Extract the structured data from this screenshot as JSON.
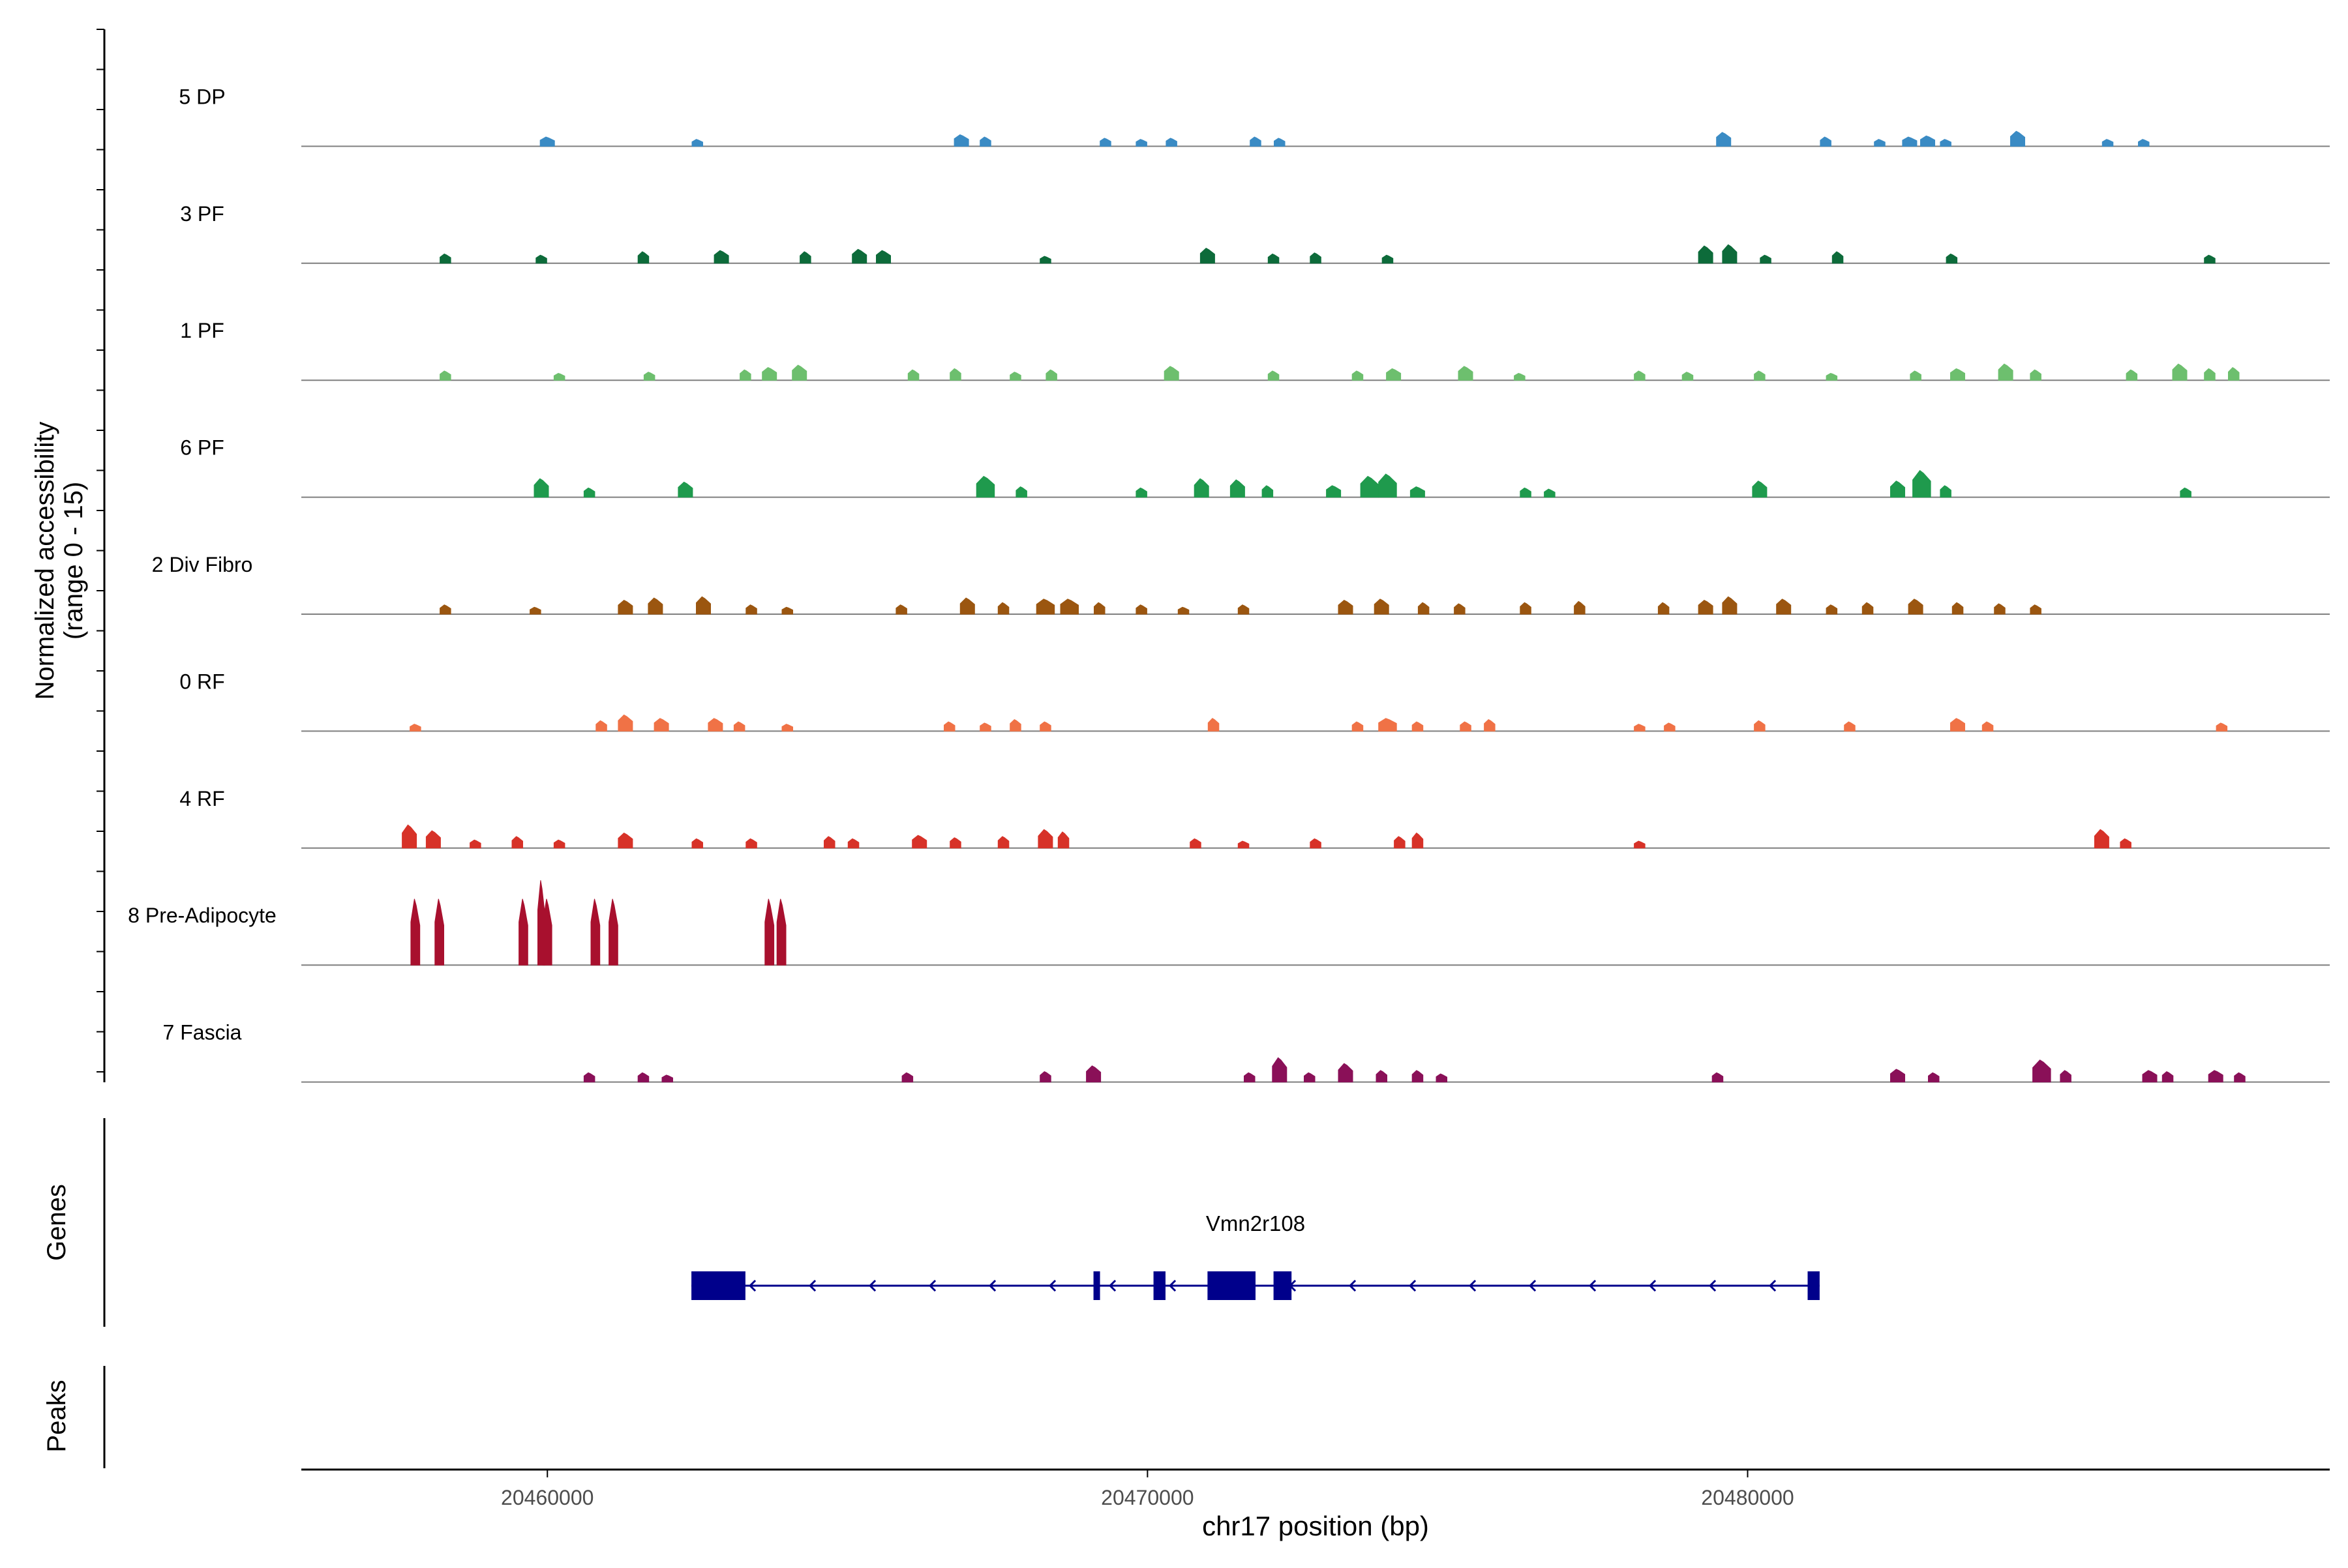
{
  "chart_data": {
    "type": "coverage-track",
    "y_axis_title": [
      "Normalized accessibility",
      "(range 0 - 15)"
    ],
    "ylim": [
      0,
      15
    ],
    "x_axis_title": "chr17 position (bp)",
    "xlim": [
      20455900,
      20489700
    ],
    "x_ticks": [
      {
        "value": 20460000,
        "label": "20460000"
      },
      {
        "value": 20470000,
        "label": "20470000"
      },
      {
        "value": 20480000,
        "label": "20480000"
      }
    ],
    "series": [
      {
        "name": "5 DP",
        "color": "#3A8BC4",
        "peaks": [
          [
            20460000,
            0.8,
            40
          ],
          [
            20462500,
            0.6,
            30
          ],
          [
            20466900,
            1.0,
            40
          ],
          [
            20467300,
            0.8,
            30
          ],
          [
            20469300,
            0.7,
            30
          ],
          [
            20469900,
            0.6,
            30
          ],
          [
            20470400,
            0.7,
            30
          ],
          [
            20471800,
            0.8,
            30
          ],
          [
            20472200,
            0.7,
            30
          ],
          [
            20479600,
            1.2,
            40
          ],
          [
            20481300,
            0.8,
            30
          ],
          [
            20482200,
            0.6,
            30
          ],
          [
            20482700,
            0.8,
            40
          ],
          [
            20483000,
            0.9,
            40
          ],
          [
            20483300,
            0.6,
            30
          ],
          [
            20484500,
            1.3,
            40
          ],
          [
            20486000,
            0.6,
            30
          ],
          [
            20486600,
            0.6,
            30
          ]
        ]
      },
      {
        "name": "3 PF",
        "color": "#0D6B3A",
        "peaks": [
          [
            20458300,
            0.8,
            30
          ],
          [
            20459900,
            0.7,
            30
          ],
          [
            20461600,
            1.0,
            30
          ],
          [
            20462900,
            1.1,
            40
          ],
          [
            20464300,
            1.0,
            30
          ],
          [
            20465200,
            1.2,
            40
          ],
          [
            20465600,
            1.1,
            40
          ],
          [
            20468300,
            0.6,
            30
          ],
          [
            20471000,
            1.3,
            40
          ],
          [
            20472100,
            0.8,
            30
          ],
          [
            20472800,
            0.9,
            30
          ],
          [
            20474000,
            0.7,
            30
          ],
          [
            20479300,
            1.5,
            40
          ],
          [
            20479700,
            1.6,
            40
          ],
          [
            20480300,
            0.7,
            30
          ],
          [
            20481500,
            1.0,
            30
          ],
          [
            20483400,
            0.8,
            30
          ],
          [
            20487700,
            0.7,
            30
          ]
        ]
      },
      {
        "name": "1 PF",
        "color": "#6DBF6E",
        "peaks": [
          [
            20458300,
            0.8,
            30
          ],
          [
            20460200,
            0.6,
            30
          ],
          [
            20461700,
            0.7,
            30
          ],
          [
            20463300,
            0.9,
            30
          ],
          [
            20463700,
            1.1,
            40
          ],
          [
            20464200,
            1.3,
            40
          ],
          [
            20466100,
            0.9,
            30
          ],
          [
            20466800,
            1.0,
            30
          ],
          [
            20467800,
            0.7,
            30
          ],
          [
            20468400,
            0.9,
            30
          ],
          [
            20470400,
            1.2,
            40
          ],
          [
            20472100,
            0.8,
            30
          ],
          [
            20473500,
            0.8,
            30
          ],
          [
            20474100,
            1.0,
            40
          ],
          [
            20475300,
            1.2,
            40
          ],
          [
            20476200,
            0.6,
            30
          ],
          [
            20478200,
            0.8,
            30
          ],
          [
            20479000,
            0.7,
            30
          ],
          [
            20480200,
            0.8,
            30
          ],
          [
            20481400,
            0.6,
            30
          ],
          [
            20482800,
            0.8,
            30
          ],
          [
            20483500,
            1.0,
            40
          ],
          [
            20484300,
            1.4,
            40
          ],
          [
            20484800,
            0.9,
            30
          ],
          [
            20486400,
            0.9,
            30
          ],
          [
            20487200,
            1.4,
            40
          ],
          [
            20487700,
            1.0,
            30
          ],
          [
            20488100,
            1.1,
            30
          ]
        ]
      },
      {
        "name": "6 PF",
        "color": "#1F9A4D",
        "peaks": [
          [
            20459900,
            1.6,
            40
          ],
          [
            20460700,
            0.8,
            30
          ],
          [
            20462300,
            1.3,
            40
          ],
          [
            20467300,
            1.8,
            50
          ],
          [
            20467900,
            0.9,
            30
          ],
          [
            20469900,
            0.8,
            30
          ],
          [
            20470900,
            1.6,
            40
          ],
          [
            20471500,
            1.5,
            40
          ],
          [
            20472000,
            1.0,
            30
          ],
          [
            20473100,
            1.0,
            40
          ],
          [
            20473700,
            1.8,
            50
          ],
          [
            20474000,
            2.0,
            50
          ],
          [
            20474500,
            0.9,
            40
          ],
          [
            20476300,
            0.8,
            30
          ],
          [
            20476700,
            0.7,
            30
          ],
          [
            20480200,
            1.4,
            40
          ],
          [
            20482500,
            1.4,
            40
          ],
          [
            20482900,
            2.3,
            50
          ],
          [
            20483300,
            1.0,
            30
          ],
          [
            20487300,
            0.8,
            30
          ]
        ]
      },
      {
        "name": "2 Div Fibro",
        "color": "#9B5610",
        "peaks": [
          [
            20458300,
            0.8,
            30
          ],
          [
            20459800,
            0.6,
            30
          ],
          [
            20461300,
            1.2,
            40
          ],
          [
            20461800,
            1.4,
            40
          ],
          [
            20462600,
            1.5,
            40
          ],
          [
            20463400,
            0.8,
            30
          ],
          [
            20464000,
            0.6,
            30
          ],
          [
            20465900,
            0.8,
            30
          ],
          [
            20467000,
            1.4,
            40
          ],
          [
            20467600,
            1.0,
            30
          ],
          [
            20468300,
            1.3,
            50
          ],
          [
            20468700,
            1.3,
            50
          ],
          [
            20469200,
            1.0,
            30
          ],
          [
            20469900,
            0.8,
            30
          ],
          [
            20470600,
            0.6,
            30
          ],
          [
            20471600,
            0.8,
            30
          ],
          [
            20473300,
            1.2,
            40
          ],
          [
            20473900,
            1.3,
            40
          ],
          [
            20474600,
            1.0,
            30
          ],
          [
            20475200,
            0.9,
            30
          ],
          [
            20476300,
            1.0,
            30
          ],
          [
            20477200,
            1.1,
            30
          ],
          [
            20478600,
            1.0,
            30
          ],
          [
            20479300,
            1.2,
            40
          ],
          [
            20479700,
            1.5,
            40
          ],
          [
            20480600,
            1.3,
            40
          ],
          [
            20481400,
            0.8,
            30
          ],
          [
            20482000,
            1.0,
            30
          ],
          [
            20482800,
            1.3,
            40
          ],
          [
            20483500,
            1.0,
            30
          ],
          [
            20484200,
            0.9,
            30
          ],
          [
            20484800,
            0.8,
            30
          ]
        ]
      },
      {
        "name": "0 RF",
        "color": "#F07246",
        "peaks": [
          [
            20457800,
            0.6,
            30
          ],
          [
            20460900,
            0.9,
            30
          ],
          [
            20461300,
            1.4,
            40
          ],
          [
            20461900,
            1.1,
            40
          ],
          [
            20462800,
            1.1,
            40
          ],
          [
            20463200,
            0.8,
            30
          ],
          [
            20464000,
            0.6,
            30
          ],
          [
            20466700,
            0.8,
            30
          ],
          [
            20467300,
            0.7,
            30
          ],
          [
            20467800,
            1.0,
            30
          ],
          [
            20468300,
            0.8,
            30
          ],
          [
            20471100,
            1.1,
            30
          ],
          [
            20473500,
            0.8,
            30
          ],
          [
            20474000,
            1.1,
            50
          ],
          [
            20474500,
            0.8,
            30
          ],
          [
            20475300,
            0.8,
            30
          ],
          [
            20475700,
            1.0,
            30
          ],
          [
            20478200,
            0.6,
            30
          ],
          [
            20478700,
            0.7,
            30
          ],
          [
            20480200,
            0.9,
            30
          ],
          [
            20481700,
            0.8,
            30
          ],
          [
            20483500,
            1.1,
            40
          ],
          [
            20484000,
            0.8,
            30
          ],
          [
            20487900,
            0.7,
            30
          ]
        ]
      },
      {
        "name": "4 RF",
        "color": "#D73228",
        "peaks": [
          [
            20457700,
            2.0,
            40
          ],
          [
            20458100,
            1.5,
            40
          ],
          [
            20458800,
            0.7,
            30
          ],
          [
            20459500,
            1.0,
            30
          ],
          [
            20460200,
            0.7,
            30
          ],
          [
            20461300,
            1.3,
            40
          ],
          [
            20462500,
            0.8,
            30
          ],
          [
            20463400,
            0.8,
            30
          ],
          [
            20464700,
            1.0,
            30
          ],
          [
            20465100,
            0.8,
            30
          ],
          [
            20466200,
            1.1,
            40
          ],
          [
            20466800,
            0.9,
            30
          ],
          [
            20467600,
            1.0,
            30
          ],
          [
            20468300,
            1.6,
            40
          ],
          [
            20468600,
            1.4,
            30
          ],
          [
            20470800,
            0.8,
            30
          ],
          [
            20471600,
            0.6,
            30
          ],
          [
            20472800,
            0.8,
            30
          ],
          [
            20474200,
            1.0,
            30
          ],
          [
            20474500,
            1.3,
            30
          ],
          [
            20478200,
            0.6,
            30
          ],
          [
            20485900,
            1.6,
            40
          ],
          [
            20486300,
            0.8,
            30
          ]
        ]
      },
      {
        "name": "8 Pre-Adipocyte",
        "color": "#A8102E",
        "peaks": [
          [
            20457800,
            5.7,
            25
          ],
          [
            20458200,
            5.7,
            25
          ],
          [
            20459600,
            5.7,
            25
          ],
          [
            20459900,
            7.3,
            20
          ],
          [
            20460000,
            5.7,
            25
          ],
          [
            20460800,
            5.7,
            25
          ],
          [
            20461100,
            5.7,
            25
          ],
          [
            20463700,
            5.7,
            25
          ],
          [
            20463900,
            5.7,
            25
          ]
        ]
      },
      {
        "name": "7 Fascia",
        "color": "#8A1058",
        "peaks": [
          [
            20460700,
            0.8,
            30
          ],
          [
            20461600,
            0.8,
            30
          ],
          [
            20462000,
            0.6,
            30
          ],
          [
            20466000,
            0.8,
            30
          ],
          [
            20468300,
            0.9,
            30
          ],
          [
            20469100,
            1.4,
            40
          ],
          [
            20471700,
            0.8,
            30
          ],
          [
            20472200,
            2.1,
            40
          ],
          [
            20472700,
            0.8,
            30
          ],
          [
            20473300,
            1.6,
            40
          ],
          [
            20473900,
            1.0,
            30
          ],
          [
            20474500,
            1.0,
            30
          ],
          [
            20474900,
            0.7,
            30
          ],
          [
            20479500,
            0.8,
            30
          ],
          [
            20482500,
            1.1,
            40
          ],
          [
            20483100,
            0.8,
            30
          ],
          [
            20484900,
            1.9,
            50
          ],
          [
            20485300,
            1.0,
            30
          ],
          [
            20486700,
            1.0,
            40
          ],
          [
            20487000,
            0.9,
            30
          ],
          [
            20487800,
            1.0,
            40
          ],
          [
            20488200,
            0.8,
            30
          ]
        ]
      }
    ],
    "gene": {
      "name": "Vmn2r108",
      "strand": "-",
      "start": 20462400,
      "end": 20481200,
      "color": "#00008B",
      "exons": [
        [
          20462400,
          20463300
        ],
        [
          20469100,
          20469200
        ],
        [
          20470100,
          20470300
        ],
        [
          20471000,
          20471800
        ],
        [
          20472100,
          20472400
        ],
        [
          20481000,
          20481200
        ]
      ]
    },
    "gene_panel_title": "Genes",
    "peaks_panel_title": "Peaks"
  }
}
